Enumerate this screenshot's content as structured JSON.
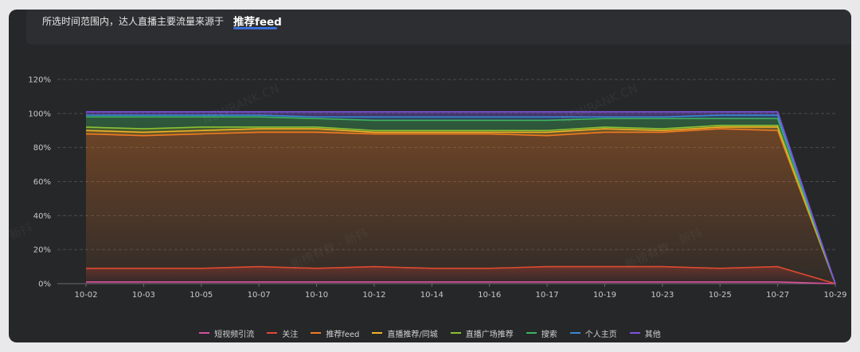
{
  "header": {
    "text": "所选时间范围内，达人直播主要流量来源于",
    "highlight": "推荐feed"
  },
  "watermarks": [
    "NEWRANK.CN",
    "NEWRANK.CN",
    "新榜有数 · 新抖",
    "新榜有数 · 新抖",
    "新抖"
  ],
  "chart_data": {
    "type": "area",
    "stacked": true,
    "x": [
      "10-02",
      "10-03",
      "10-05",
      "10-07",
      "10-10",
      "10-12",
      "10-14",
      "10-16",
      "10-17",
      "10-19",
      "10-23",
      "10-25",
      "10-27",
      "10-29"
    ],
    "y_ticks": [
      "0%",
      "20%",
      "40%",
      "60%",
      "80%",
      "100%",
      "120%"
    ],
    "ylim": [
      0,
      120
    ],
    "grid": true,
    "legend_position": "bottom",
    "series": [
      {
        "name": "短视频引流",
        "color": "#d84f9c",
        "values": [
          1,
          1,
          1,
          1,
          1,
          1,
          1,
          1,
          1,
          1,
          1,
          1,
          1,
          0
        ]
      },
      {
        "name": "关注",
        "color": "#e04a2f",
        "values": [
          8,
          8,
          8,
          9,
          8,
          9,
          8,
          8,
          9,
          9,
          9,
          8,
          9,
          0
        ]
      },
      {
        "name": "推荐feed",
        "color": "#f07b22",
        "values": [
          79,
          78,
          79,
          79,
          80,
          78,
          79,
          79,
          77,
          79,
          79,
          82,
          80,
          0
        ]
      },
      {
        "name": "直播推荐/同城",
        "color": "#f3b326",
        "values": [
          2,
          2,
          2,
          2,
          2,
          1,
          1,
          1,
          2,
          2,
          1,
          1,
          2,
          0
        ]
      },
      {
        "name": "直播广场推荐",
        "color": "#8ac234",
        "values": [
          2,
          2,
          2,
          1,
          1,
          1,
          1,
          1,
          1,
          1,
          1,
          1,
          1,
          0
        ]
      },
      {
        "name": "搜索",
        "color": "#3eb45e",
        "values": [
          6,
          7,
          6,
          6,
          5,
          6,
          6,
          6,
          6,
          5,
          6,
          4,
          4,
          0
        ]
      },
      {
        "name": "个人主页",
        "color": "#3c87d6",
        "values": [
          1,
          1,
          1,
          1,
          1,
          2,
          2,
          2,
          2,
          1,
          1,
          2,
          2,
          0
        ]
      },
      {
        "name": "其他",
        "color": "#7d52e0",
        "values": [
          2,
          2,
          2,
          2,
          3,
          3,
          3,
          3,
          3,
          3,
          3,
          2,
          2,
          0
        ]
      }
    ]
  }
}
